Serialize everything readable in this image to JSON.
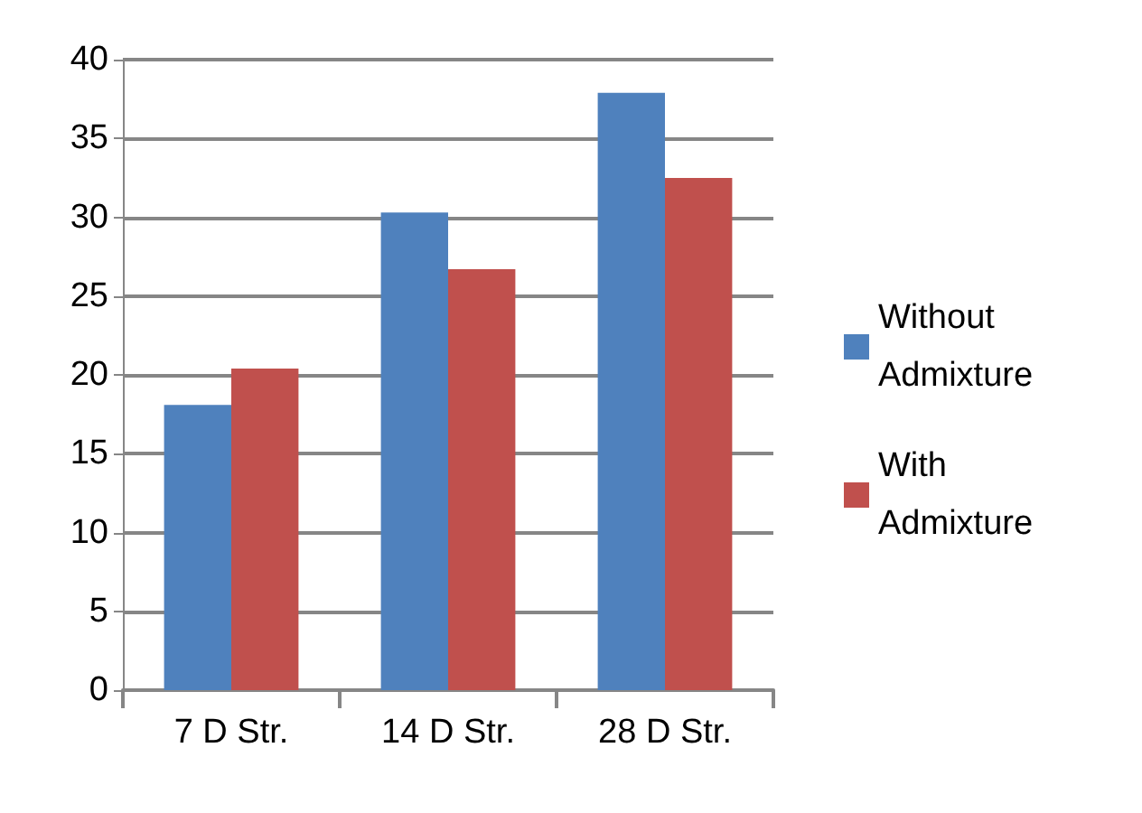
{
  "chart_data": {
    "type": "bar",
    "categories": [
      "7 D Str.",
      "14 D Str.",
      "28 D Str."
    ],
    "series": [
      {
        "name": "Without Admixture",
        "color": "#4f81bd",
        "values": [
          18.1,
          30.3,
          37.9
        ]
      },
      {
        "name": "With Admixture",
        "color": "#c0504d",
        "values": [
          20.4,
          26.7,
          32.5
        ]
      }
    ],
    "ylim": [
      0,
      40
    ],
    "yticks": [
      0,
      5,
      10,
      15,
      20,
      25,
      30,
      35,
      40
    ],
    "grid": "y",
    "legend": "right"
  }
}
